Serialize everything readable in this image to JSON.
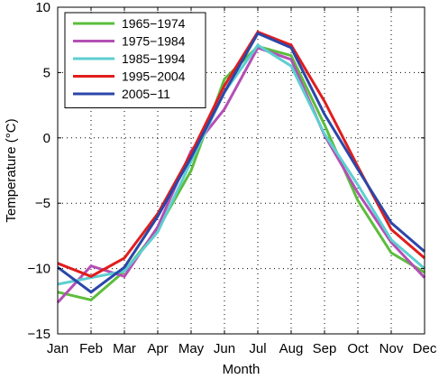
{
  "chart_data": {
    "type": "line",
    "title": "",
    "xlabel": "Month",
    "ylabel": "Temperature (°C)",
    "categories": [
      "Jan",
      "Feb",
      "Mar",
      "Apr",
      "May",
      "Jun",
      "Jul",
      "Aug",
      "Sep",
      "Oct",
      "Nov",
      "Dec"
    ],
    "ylim": [
      -15,
      10
    ],
    "yticks": [
      -15,
      -10,
      -5,
      0,
      5,
      10
    ],
    "grid": true,
    "legend_position": "top-left",
    "series": [
      {
        "name": "1965−1974",
        "color": "#5cbd3c",
        "values": [
          -11.8,
          -12.4,
          -10.2,
          -7.0,
          -2.5,
          4.5,
          7.0,
          6.3,
          1.0,
          -4.8,
          -8.8,
          -10.3
        ]
      },
      {
        "name": "1975−1984",
        "color": "#b44fb5",
        "values": [
          -12.6,
          -9.8,
          -10.6,
          -6.8,
          -1.0,
          2.2,
          6.9,
          6.0,
          0.2,
          -4.2,
          -8.0,
          -10.7
        ]
      },
      {
        "name": "1985−1994",
        "color": "#5ccfd0",
        "values": [
          -11.2,
          -10.7,
          -10.2,
          -7.2,
          -1.8,
          3.5,
          7.1,
          5.5,
          0.3,
          -3.6,
          -7.8,
          -10.0
        ]
      },
      {
        "name": "1995−2004",
        "color": "#e11d1d",
        "values": [
          -9.6,
          -10.6,
          -9.2,
          -5.8,
          -1.2,
          4.0,
          8.1,
          7.1,
          2.8,
          -2.2,
          -7.0,
          -9.2
        ]
      },
      {
        "name": "2005−11",
        "color": "#2b47a8",
        "values": [
          -9.9,
          -11.8,
          -9.9,
          -6.0,
          -1.5,
          3.5,
          8.0,
          6.9,
          1.8,
          -2.4,
          -6.5,
          -8.7
        ]
      }
    ]
  }
}
